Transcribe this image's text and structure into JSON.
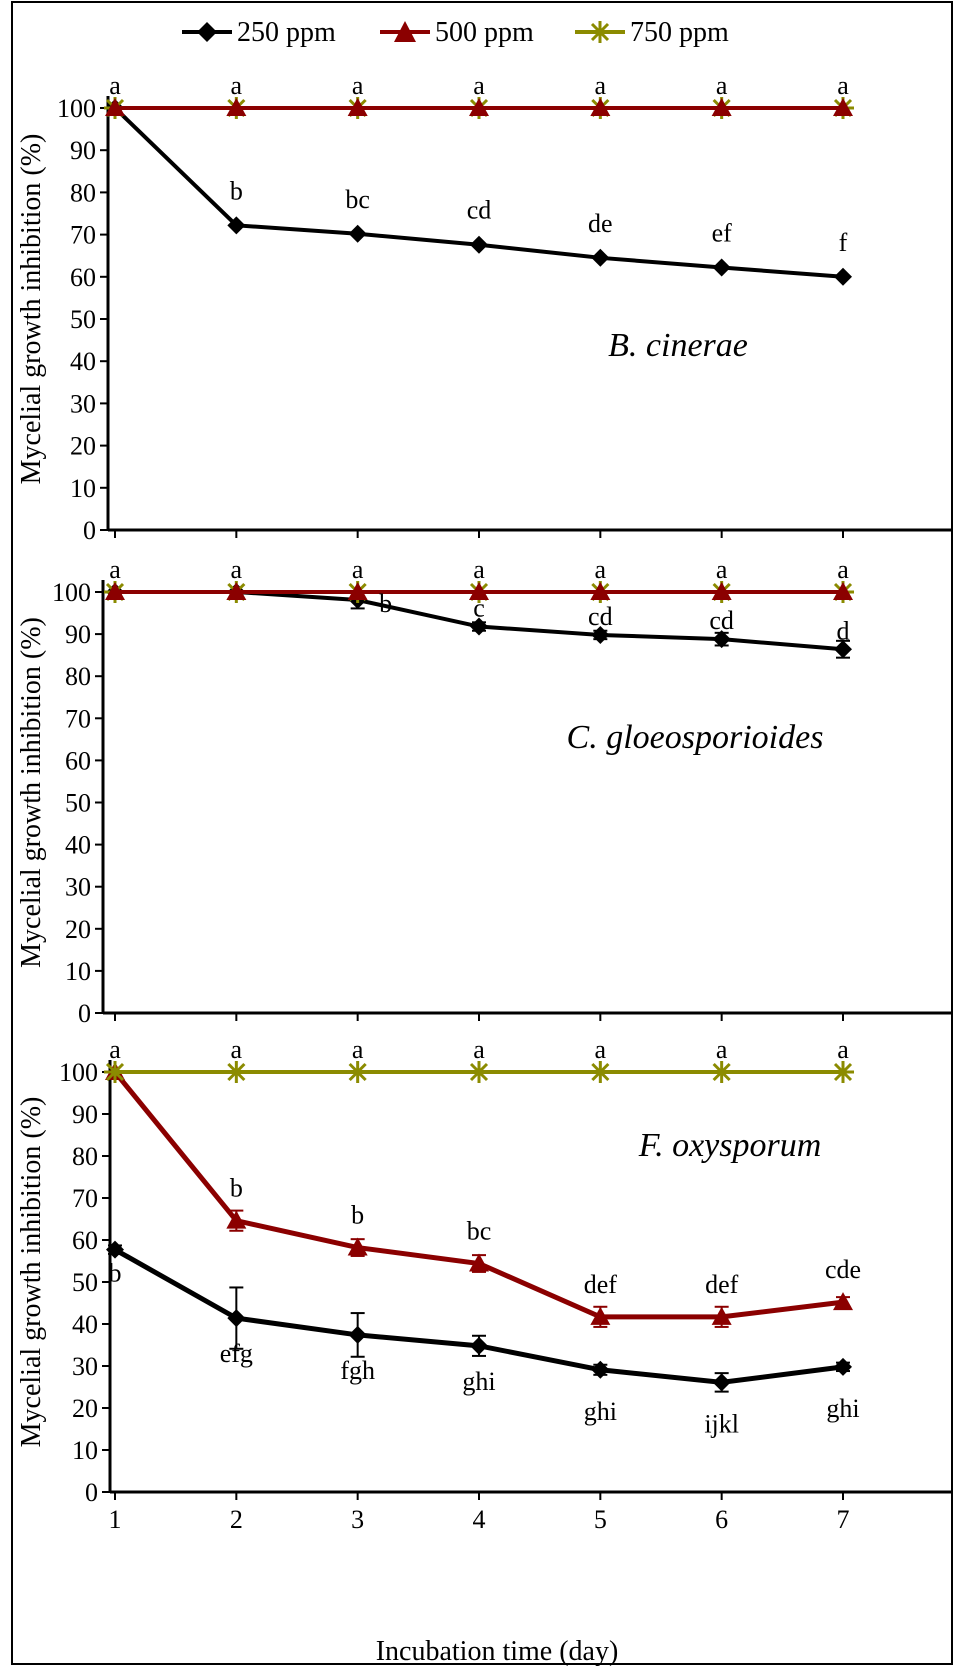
{
  "colors": {
    "250 ppm": "#000000",
    "500 ppm": "#8B0000",
    "750 ppm": "#8B8B00",
    "frame": "#000000"
  },
  "legend": {
    "items": [
      {
        "label": "250 ppm",
        "marker": "diamond"
      },
      {
        "label": "500 ppm",
        "marker": "triangle"
      },
      {
        "label": "750 ppm",
        "marker": "asterisk"
      }
    ]
  },
  "chart_data": [
    {
      "type": "line",
      "title": "B. cinerae",
      "ylabel": "Mycelial growth inhibition (%)",
      "xlabel": "",
      "x": [
        1,
        2,
        3,
        4,
        5,
        6,
        7
      ],
      "ylim": [
        0,
        100
      ],
      "yticks": [
        0,
        10,
        20,
        30,
        40,
        50,
        60,
        70,
        80,
        90,
        100
      ],
      "series": [
        {
          "name": "250 ppm",
          "values": [
            100,
            72.2,
            70.2,
            67.6,
            64.5,
            62.2,
            60.0
          ],
          "errors": [
            0,
            0,
            0,
            0,
            0,
            0,
            0
          ],
          "letters": [
            "",
            "b",
            "bc",
            "cd",
            "de",
            "ef",
            "f"
          ]
        },
        {
          "name": "500 ppm",
          "values": [
            100,
            100,
            100,
            100,
            100,
            100,
            100
          ],
          "errors": [
            0,
            0,
            0,
            0,
            0,
            0,
            0
          ],
          "letters": [
            "a",
            "a",
            "a",
            "a",
            "a",
            "a",
            "a"
          ]
        },
        {
          "name": "750 ppm",
          "values": [
            100,
            100,
            100,
            100,
            100,
            100,
            100
          ],
          "errors": [
            0,
            0,
            0,
            0,
            0,
            0,
            0
          ],
          "letters": [
            "",
            "",
            "",
            "",
            "",
            "",
            ""
          ]
        }
      ]
    },
    {
      "type": "line",
      "title": "C. gloeosporioides",
      "ylabel": "Mycelial growth inhibition (%)",
      "xlabel": "",
      "x": [
        1,
        2,
        3,
        4,
        5,
        6,
        7
      ],
      "ylim": [
        0,
        100
      ],
      "yticks": [
        0,
        10,
        20,
        30,
        40,
        50,
        60,
        70,
        80,
        90,
        100
      ],
      "series": [
        {
          "name": "250 ppm",
          "values": [
            100,
            100,
            98.1,
            91.8,
            89.8,
            88.8,
            86.4
          ],
          "errors": [
            0,
            0,
            2,
            1,
            1,
            1.5,
            2
          ],
          "letters": [
            "",
            "",
            "b",
            "c",
            "cd",
            "cd",
            "d"
          ]
        },
        {
          "name": "500 ppm",
          "values": [
            100,
            100,
            100,
            100,
            100,
            100,
            100
          ],
          "errors": [
            0,
            0,
            0,
            0,
            0,
            0,
            0
          ],
          "letters": [
            "a",
            "a",
            "a",
            "a",
            "a",
            "a",
            "a"
          ]
        },
        {
          "name": "750 ppm",
          "values": [
            100,
            100,
            100,
            100,
            100,
            100,
            100
          ],
          "errors": [
            0,
            0,
            0,
            0,
            0,
            0,
            0
          ],
          "letters": [
            "",
            "",
            "",
            "",
            "",
            "",
            ""
          ]
        }
      ]
    },
    {
      "type": "line",
      "title": "F. oxysporum",
      "ylabel": "Mycelial growth inhibition (%)",
      "xlabel": "Incubation time (day)",
      "x": [
        1,
        2,
        3,
        4,
        5,
        6,
        7
      ],
      "ylim": [
        0,
        100
      ],
      "yticks": [
        0,
        10,
        20,
        30,
        40,
        50,
        60,
        70,
        80,
        90,
        100
      ],
      "series": [
        {
          "name": "250 ppm",
          "values": [
            57.7,
            41.4,
            37.4,
            34.8,
            29.1,
            26.1,
            29.8
          ],
          "errors": [
            1,
            7.3,
            5.2,
            2.4,
            1.2,
            2.2,
            1.0
          ],
          "letters": [
            "b",
            "efg",
            "fgh",
            "ghi",
            "ghi",
            "ijkl",
            "ghi"
          ]
        },
        {
          "name": "500 ppm",
          "values": [
            100,
            64.6,
            58.2,
            54.4,
            41.7,
            41.7,
            45.2
          ],
          "errors": [
            0,
            2.4,
            2.0,
            2.0,
            2.4,
            2.4,
            1.2
          ],
          "letters": [
            "a",
            "b",
            "b",
            "bc",
            "def",
            "def",
            "cde"
          ]
        },
        {
          "name": "750 ppm",
          "values": [
            100,
            100,
            100,
            100,
            100,
            100,
            100
          ],
          "errors": [
            0,
            0,
            0,
            0,
            0,
            0,
            0
          ],
          "letters": [
            "",
            "a",
            "a",
            "a",
            "a",
            "a",
            "a"
          ]
        }
      ]
    }
  ]
}
